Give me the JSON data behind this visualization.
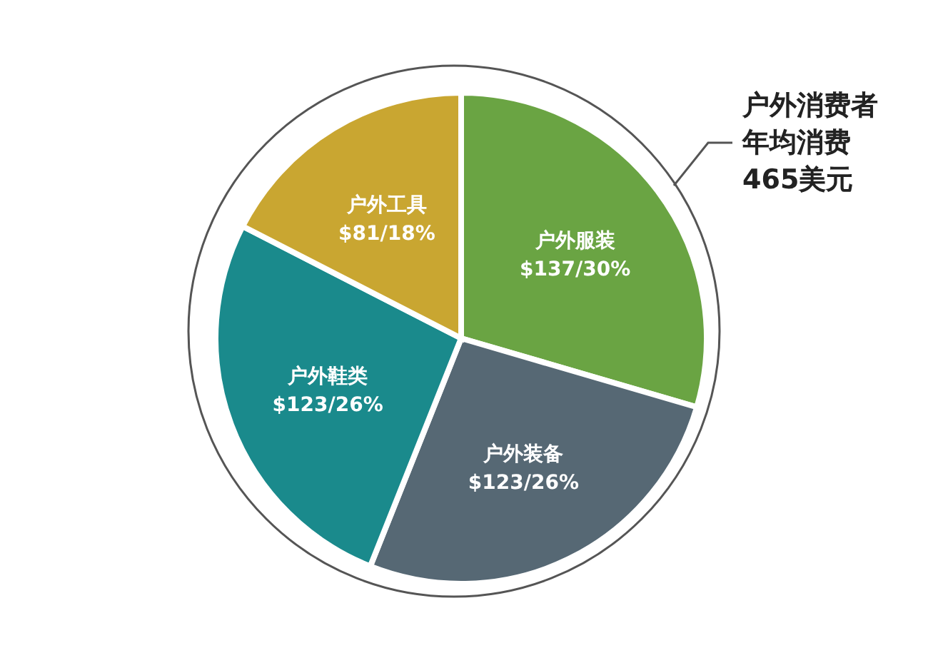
{
  "chart_data": {
    "type": "pie",
    "categories": [
      "户外服装",
      "户外装备",
      "户外鞋类",
      "户外工具"
    ],
    "values": [
      137,
      123,
      123,
      81
    ],
    "value_labels": [
      "$137/30%",
      "$123/26%",
      "$123/26%",
      "$81/18%"
    ],
    "colors": [
      "#6aa443",
      "#566874",
      "#1a8a8c",
      "#c9a631"
    ],
    "annotations": [
      "户外消费者",
      "年均消费",
      "465美元"
    ],
    "legend": false
  }
}
